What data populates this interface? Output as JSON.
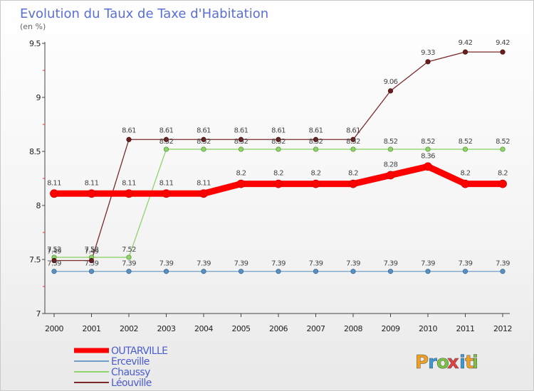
{
  "chart_data": {
    "type": "line",
    "title": "Evolution du Taux de Taxe d'Habitation",
    "unit_label": "(en %)",
    "xlabel": "",
    "ylabel": "",
    "x": [
      "2000",
      "2001",
      "2002",
      "2003",
      "2004",
      "2005",
      "2006",
      "2007",
      "2008",
      "2009",
      "2010",
      "2011",
      "2012"
    ],
    "ylim": [
      7,
      9.5
    ],
    "yticks": [
      "7",
      "7.5",
      "8",
      "8.5",
      "9",
      "9.5"
    ],
    "ytick_values": [
      7,
      7.5,
      8,
      8.5,
      9,
      9.5
    ],
    "series": [
      {
        "name": "Erceville",
        "color": "#6f9fc9",
        "values": [
          7.39,
          7.39,
          7.39,
          7.39,
          7.39,
          7.39,
          7.39,
          7.39,
          7.39,
          7.39,
          7.39,
          7.39,
          7.39
        ],
        "labels": [
          "7.39",
          "7.39",
          "7.39",
          "7.39",
          "7.39",
          "7.39",
          "7.39",
          "7.39",
          "7.39",
          "7.39",
          "7.39",
          "7.39",
          "7.39"
        ]
      },
      {
        "name": "Chaussy",
        "color": "#8fd36a",
        "values": [
          7.52,
          7.52,
          7.52,
          8.52,
          8.52,
          8.52,
          8.52,
          8.52,
          8.52,
          8.52,
          8.52,
          8.52,
          8.52
        ],
        "labels": [
          "7.52",
          "7.52",
          "7.52",
          "8.52",
          "8.52",
          "8.52",
          "8.52",
          "8.52",
          "8.52",
          "8.52",
          "8.52",
          "8.52",
          "8.52"
        ]
      },
      {
        "name": "Léouville",
        "color": "#7b2a2a",
        "values": [
          7.49,
          7.49,
          8.61,
          8.61,
          8.61,
          8.61,
          8.61,
          8.61,
          8.61,
          9.06,
          9.33,
          9.42,
          9.42
        ],
        "labels": [
          "7.49",
          "7.49",
          "8.61",
          "8.61",
          "8.61",
          "8.61",
          "8.61",
          "8.61",
          "8.61",
          "9.06",
          "9.33",
          "9.42",
          "9.42"
        ]
      },
      {
        "name": "OUTARVILLE",
        "color": "#ff0000",
        "values": [
          8.11,
          8.11,
          8.11,
          8.11,
          8.11,
          8.2,
          8.2,
          8.2,
          8.2,
          8.28,
          8.36,
          8.2,
          8.2
        ],
        "labels": [
          "8.11",
          "8.11",
          "8.11",
          "8.11",
          "8.11",
          "8.2",
          "8.2",
          "8.2",
          "8.2",
          "8.28",
          "8.36",
          "8.2",
          "8.2"
        ]
      }
    ],
    "legend": [
      "OUTARVILLE",
      "Erceville",
      "Chaussy",
      "Léouville"
    ],
    "legend_position": "bottom-left",
    "grid": false
  },
  "branding": {
    "letters": [
      "P",
      "r",
      "o",
      "x",
      "i",
      "t",
      "i"
    ],
    "colors": [
      "#f0a020",
      "#3a9ad9",
      "#7cc242",
      "#e04040",
      "#3a9ad9",
      "#f0a020",
      "#7cc242"
    ]
  }
}
